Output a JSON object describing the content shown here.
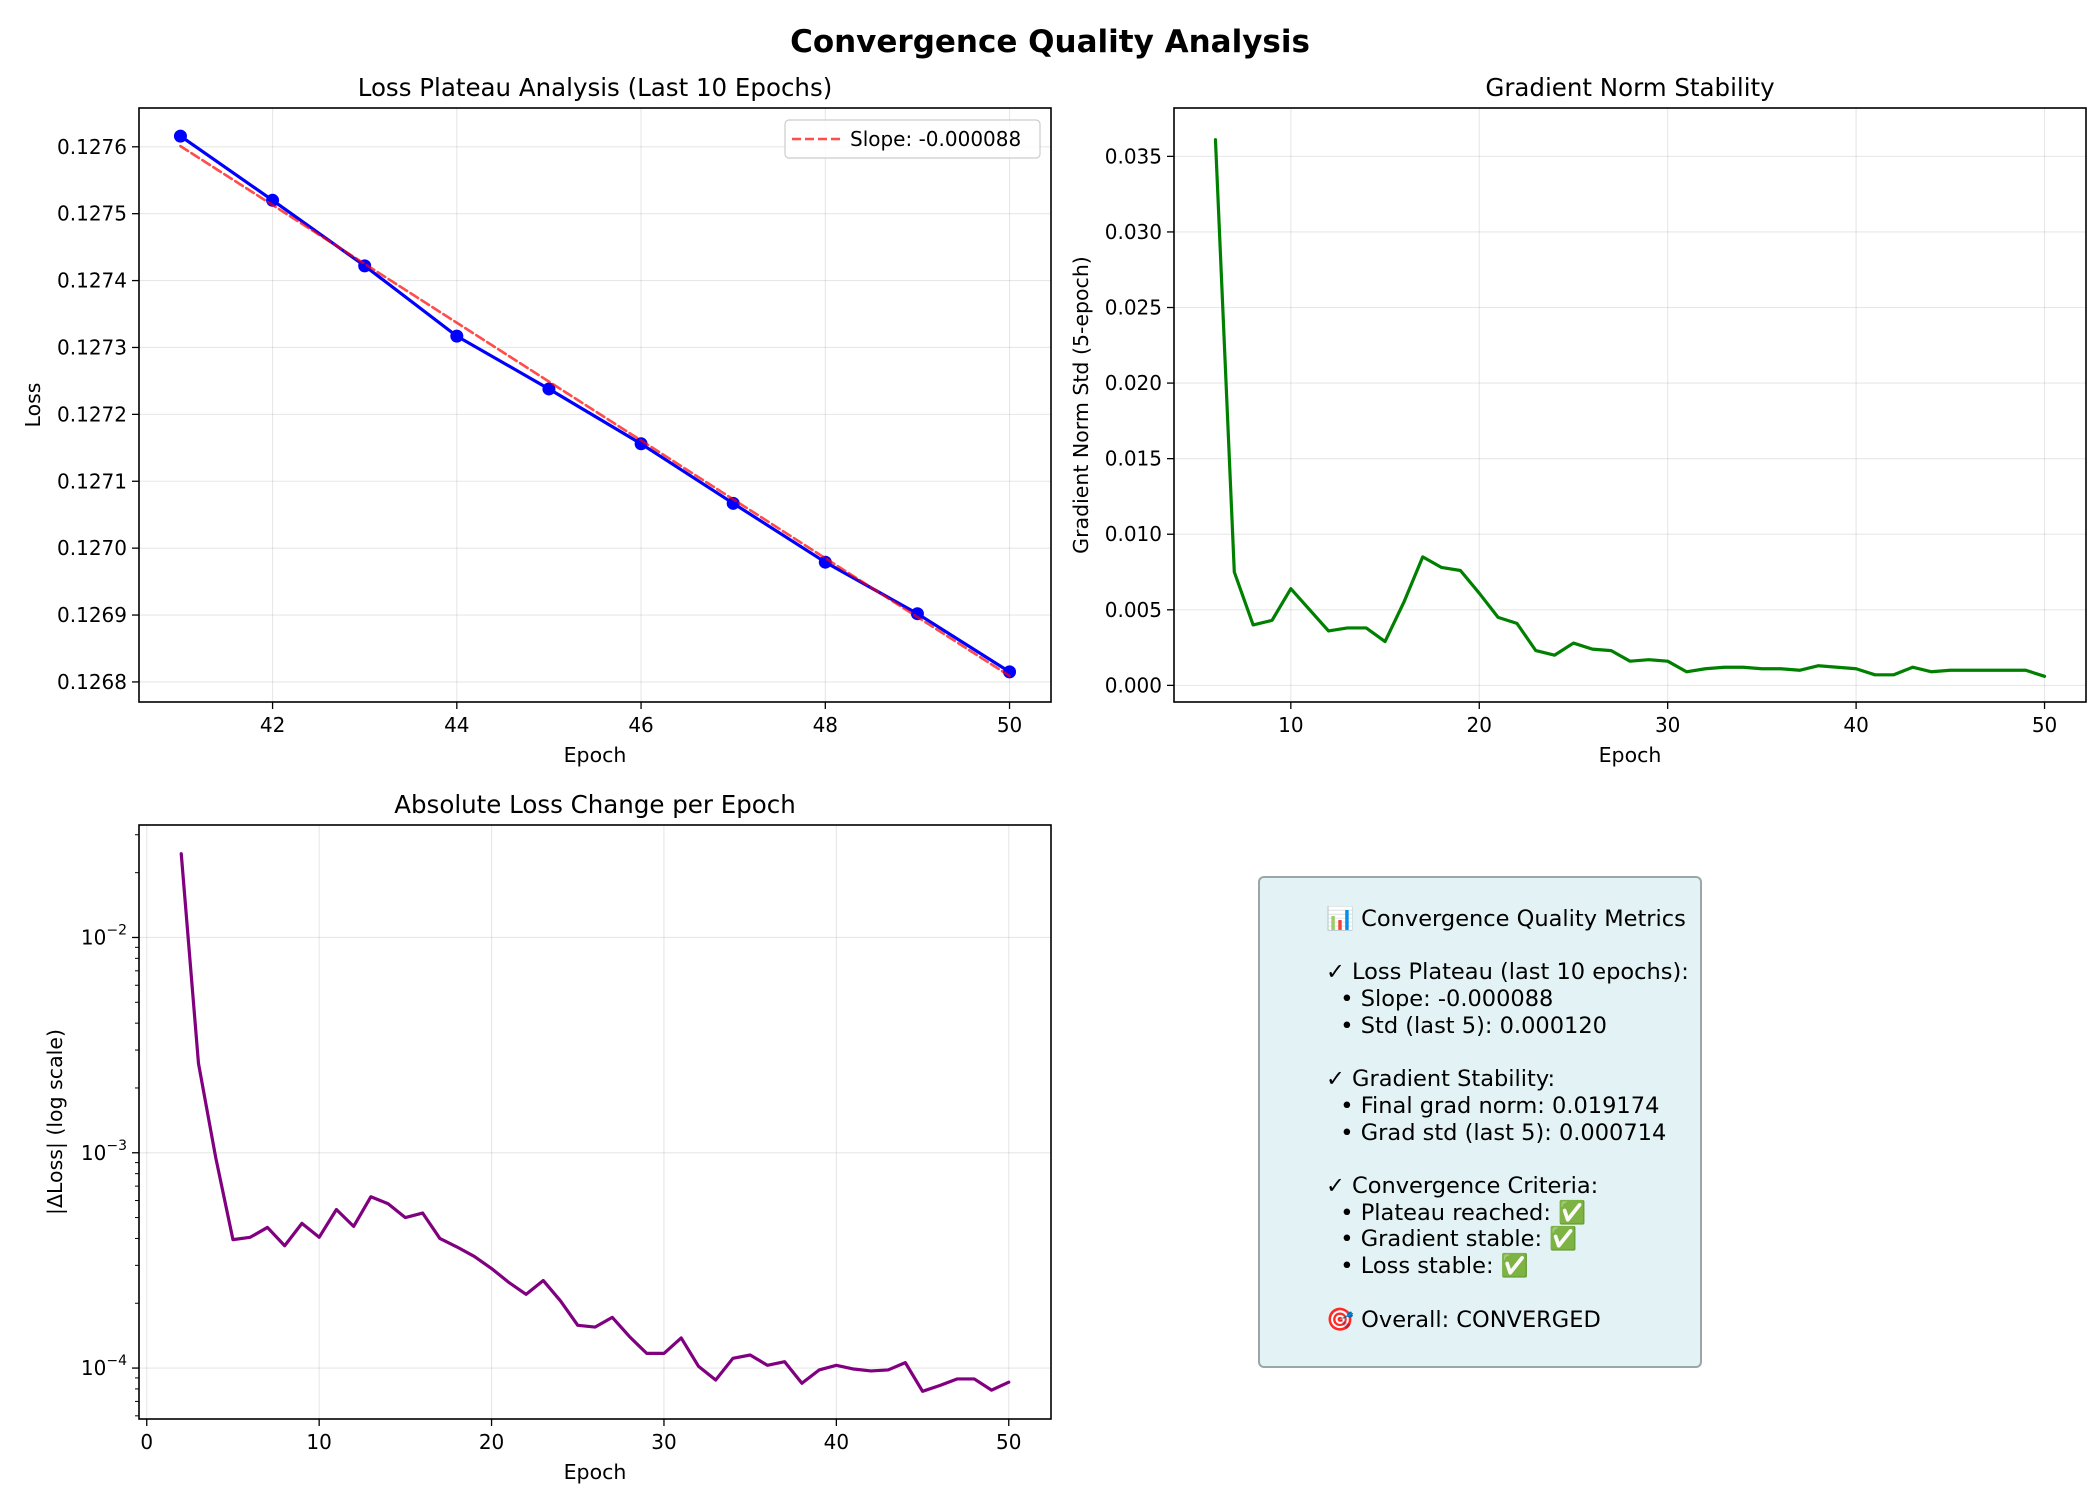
{
  "figure_title": "Convergence Quality Analysis",
  "chart_data": [
    {
      "id": "loss_plateau",
      "type": "line",
      "title": "Loss Plateau Analysis (Last 10 Epochs)",
      "xlabel": "Epoch",
      "ylabel": "Loss",
      "xlim": [
        40.55,
        50.45
      ],
      "ylim": [
        0.12677,
        0.127658
      ],
      "xticks": [
        42,
        44,
        46,
        48,
        50
      ],
      "yticks": [
        0.1268,
        0.1269,
        0.127,
        0.1271,
        0.1272,
        0.1273,
        0.1274,
        0.1275,
        0.1276
      ],
      "ytick_labels": [
        "0.1268",
        "0.1269",
        "0.1270",
        "0.1271",
        "0.1272",
        "0.1273",
        "0.1274",
        "0.1275",
        "0.1276"
      ],
      "grid": true,
      "legend_position": "upper right",
      "series": [
        {
          "name": "",
          "style": "solid-markers",
          "color": "#0000ff",
          "x": [
            41,
            42,
            43,
            44,
            45,
            46,
            47,
            48,
            49,
            50
          ],
          "y": [
            0.127616,
            0.12752,
            0.127422,
            0.127317,
            0.127238,
            0.127156,
            0.127067,
            0.126979,
            0.126902,
            0.126815
          ]
        },
        {
          "name": "Slope: -0.000088",
          "style": "dashed",
          "color": "#ff0000",
          "x": [
            41,
            50
          ],
          "y": [
            0.127601,
            0.126809
          ]
        }
      ]
    },
    {
      "id": "grad_norm",
      "type": "line",
      "title": "Gradient Norm Stability",
      "xlabel": "Epoch",
      "ylabel": "Gradient Norm Std (5-epoch)",
      "xlim": [
        3.8,
        52.2
      ],
      "ylim": [
        -0.0011,
        0.0382
      ],
      "xticks": [
        10,
        20,
        30,
        40,
        50
      ],
      "yticks": [
        0,
        0.005,
        0.01,
        0.015,
        0.02,
        0.025,
        0.03,
        0.035
      ],
      "ytick_labels": [
        "0.000",
        "0.005",
        "0.010",
        "0.015",
        "0.020",
        "0.025",
        "0.030",
        "0.035"
      ],
      "grid": true,
      "series": [
        {
          "name": "",
          "color": "#008000",
          "x": [
            6,
            7,
            8,
            9,
            10,
            11,
            12,
            13,
            14,
            15,
            16,
            17,
            18,
            19,
            20,
            21,
            22,
            23,
            24,
            25,
            26,
            27,
            28,
            29,
            30,
            31,
            32,
            33,
            34,
            35,
            36,
            37,
            38,
            39,
            40,
            41,
            42,
            43,
            44,
            45,
            46,
            47,
            48,
            49,
            50
          ],
          "y": [
            0.0361,
            0.0075,
            0.004,
            0.0043,
            0.0064,
            0.005,
            0.0036,
            0.0038,
            0.0038,
            0.0029,
            0.0055,
            0.0085,
            0.0078,
            0.0076,
            0.0061,
            0.0045,
            0.0041,
            0.0023,
            0.002,
            0.0028,
            0.0024,
            0.0023,
            0.0016,
            0.0017,
            0.0016,
            0.0009,
            0.0011,
            0.0012,
            0.0012,
            0.0011,
            0.0011,
            0.001,
            0.0013,
            0.0012,
            0.0011,
            0.0007,
            0.0007,
            0.0012,
            0.0009,
            0.001,
            0.001,
            0.001,
            0.001,
            0.001,
            0.0006
          ]
        }
      ]
    },
    {
      "id": "abs_loss_change",
      "type": "line",
      "title": "Absolute Loss Change per Epoch",
      "xlabel": "Epoch",
      "ylabel": "|ΔLoss| (log scale)",
      "yscale": "log",
      "xlim": [
        -0.45,
        52.45
      ],
      "ylim": [
        5.8e-05,
        0.0333
      ],
      "xticks": [
        0,
        10,
        20,
        30,
        40,
        50
      ],
      "yticks": [
        0.0001,
        0.001,
        0.01
      ],
      "ytick_labels": [
        {
          "base": "10",
          "exp": "−4"
        },
        {
          "base": "10",
          "exp": "−3"
        },
        {
          "base": "10",
          "exp": "−2"
        }
      ],
      "grid": true,
      "series": [
        {
          "name": "",
          "color": "#800080",
          "x": [
            2,
            3,
            4,
            5,
            6,
            7,
            8,
            9,
            10,
            11,
            12,
            13,
            14,
            15,
            16,
            17,
            18,
            19,
            20,
            21,
            22,
            23,
            24,
            25,
            26,
            27,
            28,
            29,
            30,
            31,
            32,
            33,
            34,
            35,
            36,
            37,
            38,
            39,
            40,
            41,
            42,
            43,
            44,
            45,
            46,
            47,
            48,
            49,
            50
          ],
          "y": [
            0.0245,
            0.0026,
            0.00095,
            0.000395,
            0.000405,
            0.00045,
            0.00037,
            0.00047,
            0.000405,
            0.000545,
            0.000455,
            0.000625,
            0.00058,
            0.0005,
            0.000525,
            0.0004,
            0.000365,
            0.00033,
            0.00029,
            0.00025,
            0.00022,
            0.000255,
            0.000205,
            0.000158,
            0.000155,
            0.000172,
            0.00014,
            0.000117,
            0.000117,
            0.000138,
            0.000102,
            8.8e-05,
            0.000111,
            0.000115,
            0.000103,
            0.000107,
            8.5e-05,
            9.8e-05,
            0.000103,
            9.9e-05,
            9.7e-05,
            9.8e-05,
            0.000106,
            7.8e-05,
            8.3e-05,
            8.9e-05,
            8.9e-05,
            7.9e-05,
            8.6e-05
          ]
        }
      ]
    }
  ],
  "summary_box": {
    "lines": [
      "📊 Convergence Quality Metrics",
      "",
      "✓ Loss Plateau (last 10 epochs):",
      "  • Slope: -0.000088",
      "  • Std (last 5): 0.000120",
      "",
      "✓ Gradient Stability:",
      "  • Final grad norm: 0.019174",
      "  • Grad std (last 5): 0.000714",
      "",
      "✓ Convergence Criteria:",
      "  • Plateau reached: ✅",
      "  • Gradient stable: ✅",
      "  • Loss stable: ✅",
      "",
      "🎯 Overall: CONVERGED"
    ]
  }
}
